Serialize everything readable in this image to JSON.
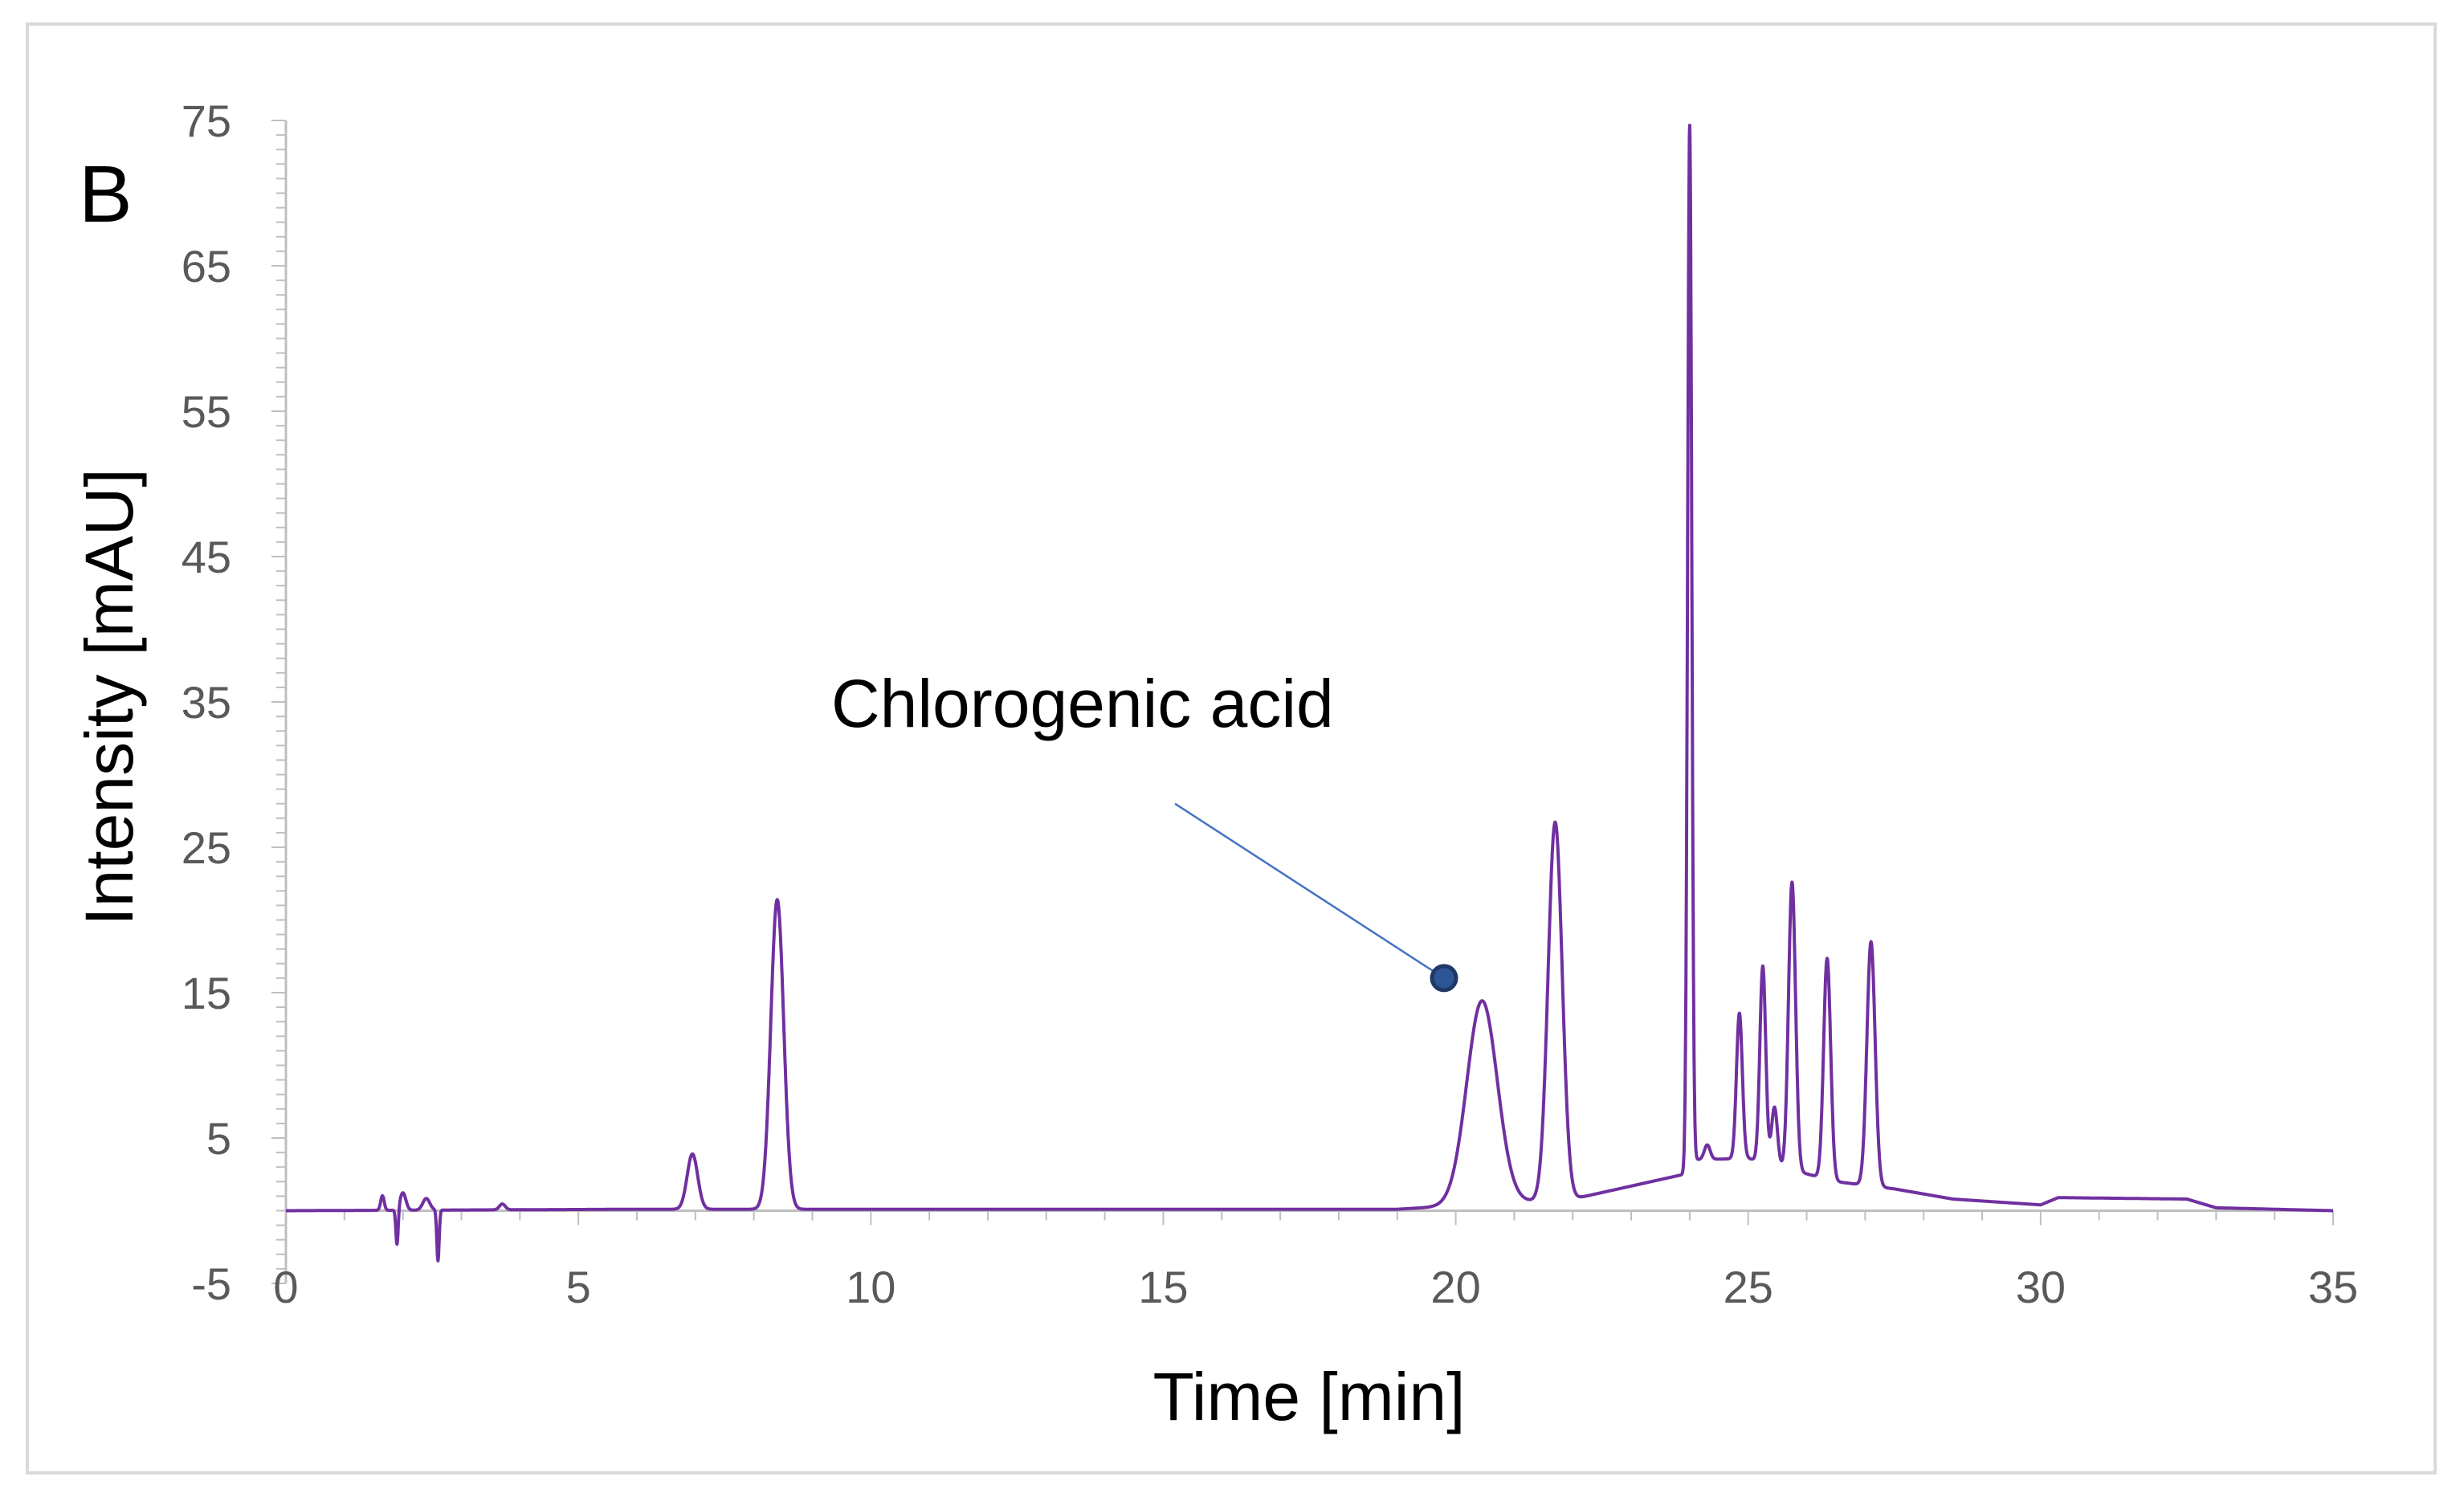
{
  "chart_data": {
    "type": "line",
    "panel_label": "B",
    "xlabel": "Time [min]",
    "ylabel": "Intensity [mAU]",
    "xlim": [
      0,
      35
    ],
    "ylim": [
      -5,
      75
    ],
    "x_ticks": [
      0,
      5,
      10,
      15,
      20,
      25,
      30,
      35
    ],
    "y_ticks": [
      75,
      65,
      55,
      45,
      35,
      25,
      15,
      5,
      -5
    ],
    "grid": false,
    "legend": "none",
    "line_color": "#7030a0",
    "annotation": {
      "text": "Chlorogenic acid",
      "marker_point": [
        19.8,
        16.0
      ],
      "text_anchor_point": [
        15.2,
        28.0
      ],
      "marker_color": "#2e5597",
      "line_color": "#4472c4"
    },
    "series": [
      {
        "baseline": [
          [
            0,
            0.0
          ],
          [
            6,
            0.1
          ],
          [
            15,
            0.1
          ],
          [
            19,
            0.1
          ],
          [
            22,
            0.8
          ],
          [
            23.9,
            2.5
          ],
          [
            24.05,
            3.5
          ],
          [
            25,
            3.6
          ],
          [
            26.5,
            2.0
          ],
          [
            27.5,
            1.5
          ],
          [
            28.5,
            0.8
          ],
          [
            30,
            0.4
          ],
          [
            30.3,
            0.9
          ],
          [
            32.5,
            0.8
          ],
          [
            33,
            0.2
          ],
          [
            35,
            0.0
          ]
        ],
        "peaks": [
          {
            "t": 1.65,
            "h": 1.0,
            "w": 0.03
          },
          {
            "t": 1.9,
            "h": -2.5,
            "w": 0.02
          },
          {
            "t": 2.0,
            "h": 1.2,
            "w": 0.05
          },
          {
            "t": 2.4,
            "h": 0.8,
            "w": 0.06
          },
          {
            "t": 2.6,
            "h": -3.5,
            "w": 0.02
          },
          {
            "t": 3.7,
            "h": 0.4,
            "w": 0.05
          },
          {
            "t": 6.95,
            "h": 3.8,
            "w": 0.09
          },
          {
            "t": 8.4,
            "h": 21.3,
            "w": 0.11
          },
          {
            "t": 20.45,
            "h": 14.0,
            "w": 0.26
          },
          {
            "t": 21.7,
            "h": 26.0,
            "w": 0.12
          },
          {
            "t": 24.0,
            "h": 71.5,
            "w": 0.035
          },
          {
            "t": 24.3,
            "h": 1.0,
            "w": 0.05
          },
          {
            "t": 24.85,
            "h": 10.0,
            "w": 0.05
          },
          {
            "t": 25.25,
            "h": 13.5,
            "w": 0.05
          },
          {
            "t": 25.45,
            "h": 4.0,
            "w": 0.05
          },
          {
            "t": 25.75,
            "h": 19.8,
            "w": 0.06
          },
          {
            "t": 26.35,
            "h": 15.2,
            "w": 0.06
          },
          {
            "t": 27.1,
            "h": 16.8,
            "w": 0.07
          }
        ]
      }
    ]
  }
}
